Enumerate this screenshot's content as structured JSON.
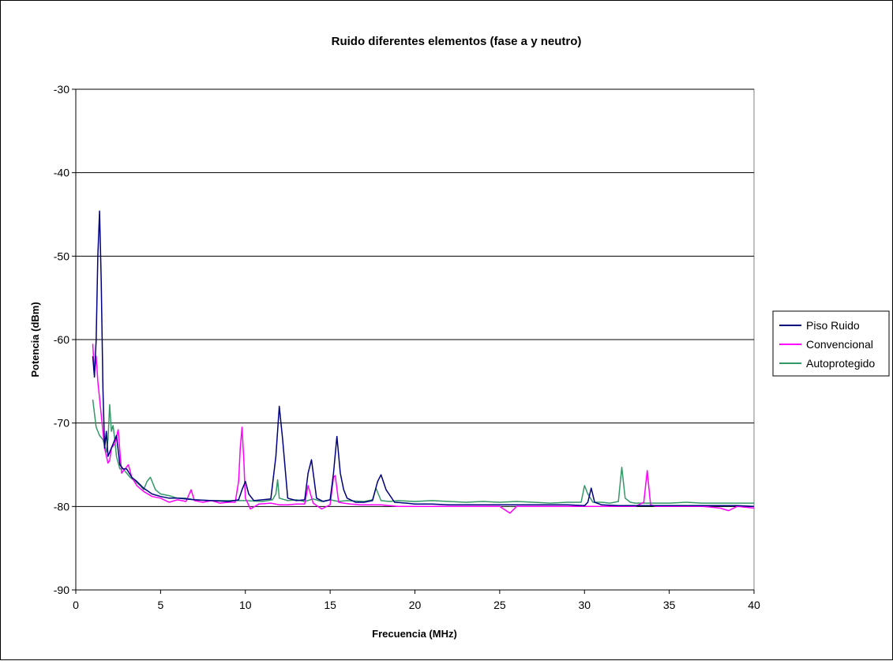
{
  "chart_data": {
    "type": "line",
    "title": "Ruido diferentes elementos (fase a y neutro)",
    "xlabel": "Frecuencia (MHz)",
    "ylabel": "Potencia (dBm)",
    "xlim": [
      0,
      40
    ],
    "ylim": [
      -90,
      -30
    ],
    "xticks": [
      0,
      5,
      10,
      15,
      20,
      25,
      30,
      35,
      40
    ],
    "yticks": [
      -30,
      -40,
      -50,
      -60,
      -70,
      -80,
      -90
    ],
    "xtick_labels": [
      "0",
      "5",
      "10",
      "15",
      "20",
      "25",
      "30",
      "35",
      "40"
    ],
    "ytick_labels": [
      "-30",
      "-40",
      "-50",
      "-60",
      "-70",
      "-80",
      "-90"
    ],
    "grid": "horizontal",
    "legend_position": "right",
    "colors": {
      "Piso Ruido": "#000080",
      "Convencional": "#ff00ff",
      "Autoprotegido": "#339966"
    },
    "series": [
      {
        "name": "Piso Ruido",
        "x": [
          1.0,
          1.1,
          1.2,
          1.3,
          1.4,
          1.5,
          1.6,
          1.7,
          1.8,
          1.9,
          2.0,
          2.2,
          2.4,
          2.6,
          2.8,
          3.0,
          3.3,
          3.6,
          4.0,
          4.5,
          5.0,
          5.5,
          6.0,
          7.0,
          8.0,
          9.0,
          9.6,
          9.8,
          10.0,
          10.2,
          10.5,
          11.0,
          11.5,
          11.8,
          12.0,
          12.2,
          12.5,
          13.0,
          13.5,
          13.7,
          13.9,
          14.2,
          14.6,
          15.0,
          15.2,
          15.4,
          15.6,
          15.8,
          16.0,
          16.5,
          17.0,
          17.5,
          17.8,
          18.0,
          18.3,
          18.8,
          19.5,
          20.0,
          21.0,
          22.0,
          23.0,
          24.0,
          25.0,
          26.0,
          27.0,
          28.0,
          29.0,
          30.0,
          30.2,
          30.4,
          30.6,
          31.0,
          32.0,
          33.0,
          34.0,
          35.0,
          36.0,
          37.0,
          38.0,
          39.0,
          40.0
        ],
        "values": [
          -62,
          -64.5,
          -60,
          -50,
          -44.6,
          -53,
          -66,
          -73,
          -71,
          -74,
          -73.5,
          -72.5,
          -71.5,
          -75,
          -75.5,
          -75.5,
          -76.5,
          -77,
          -77.8,
          -78.5,
          -78.8,
          -79,
          -79,
          -79.2,
          -79.3,
          -79.4,
          -79.2,
          -78,
          -77,
          -78.5,
          -79.3,
          -79.2,
          -79.1,
          -74,
          -68,
          -72,
          -79,
          -79.3,
          -79.2,
          -76,
          -74.4,
          -79,
          -79.4,
          -79.2,
          -76,
          -71.6,
          -76,
          -78,
          -79,
          -79.5,
          -79.5,
          -79.3,
          -77,
          -76.2,
          -78,
          -79.5,
          -79.6,
          -79.7,
          -79.7,
          -79.8,
          -79.8,
          -79.8,
          -79.8,
          -79.8,
          -79.8,
          -79.8,
          -79.8,
          -79.9,
          -79.5,
          -77.8,
          -79.5,
          -79.8,
          -79.9,
          -79.9,
          -79.9,
          -79.9,
          -79.9,
          -79.9,
          -79.9,
          -79.9,
          -80
        ]
      },
      {
        "name": "Convencional",
        "x": [
          1.0,
          1.1,
          1.2,
          1.3,
          1.5,
          1.7,
          1.9,
          2.0,
          2.1,
          2.3,
          2.5,
          2.7,
          2.9,
          3.1,
          3.3,
          3.6,
          4.0,
          4.5,
          5.0,
          5.5,
          6.0,
          6.5,
          6.8,
          7.0,
          7.5,
          8.0,
          8.5,
          9.0,
          9.4,
          9.6,
          9.7,
          9.8,
          9.9,
          10.0,
          10.3,
          10.8,
          11.5,
          12.0,
          12.5,
          13.0,
          13.5,
          13.7,
          14.0,
          14.5,
          15.0,
          15.2,
          15.3,
          15.5,
          15.8,
          16.2,
          16.8,
          17.5,
          18.0,
          18.5,
          19.0,
          20.0,
          21.0,
          22.0,
          23.0,
          24.0,
          25.0,
          25.6,
          26.0,
          27.0,
          28.0,
          29.0,
          30.0,
          31.0,
          32.0,
          33.0,
          33.5,
          33.7,
          33.9,
          34.2,
          35.0,
          36.0,
          37.0,
          38.0,
          38.5,
          39.0,
          40.0
        ],
        "values": [
          -60.5,
          -64,
          -62,
          -65,
          -69,
          -73,
          -74.8,
          -74.5,
          -73,
          -72.5,
          -70.8,
          -76,
          -75.5,
          -75,
          -76.5,
          -77.5,
          -78.2,
          -78.8,
          -79,
          -79.5,
          -79.2,
          -79.4,
          -78,
          -79.3,
          -79.5,
          -79.3,
          -79.6,
          -79.5,
          -79.5,
          -77,
          -73,
          -70.5,
          -74,
          -79,
          -80.3,
          -79.7,
          -79.6,
          -79.8,
          -79.8,
          -79.7,
          -79.7,
          -77.5,
          -79.6,
          -80.3,
          -79.8,
          -76.5,
          -76.3,
          -79.5,
          -79.6,
          -79.7,
          -79.8,
          -79.8,
          -79.8,
          -79.9,
          -80,
          -80,
          -80,
          -80,
          -80,
          -80,
          -80,
          -80.8,
          -80,
          -80,
          -80,
          -80,
          -80,
          -80,
          -80,
          -80,
          -79.5,
          -75.7,
          -79.8,
          -80,
          -80,
          -80,
          -80,
          -80.2,
          -80.5,
          -80,
          -80.2
        ]
      },
      {
        "name": "Autoprotegido",
        "x": [
          1.0,
          1.2,
          1.4,
          1.6,
          1.8,
          1.9,
          2.0,
          2.1,
          2.2,
          2.3,
          2.4,
          2.6,
          2.8,
          3.0,
          3.2,
          3.5,
          3.8,
          4.0,
          4.2,
          4.4,
          4.7,
          5.0,
          5.5,
          6.0,
          6.5,
          7.0,
          8.0,
          9.0,
          10.0,
          11.0,
          11.6,
          11.8,
          11.9,
          12.0,
          12.5,
          13.0,
          13.5,
          14.0,
          14.5,
          15.0,
          15.5,
          16.0,
          17.0,
          17.5,
          17.7,
          18.0,
          18.5,
          19.0,
          20.0,
          21.0,
          22.0,
          23.0,
          24.0,
          25.0,
          26.0,
          27.0,
          28.0,
          29.0,
          29.8,
          30.0,
          30.2,
          30.5,
          31.0,
          31.5,
          32.0,
          32.2,
          32.4,
          32.7,
          33.0,
          34.0,
          35.0,
          36.0,
          37.0,
          38.0,
          39.0,
          40.0
        ],
        "values": [
          -67.2,
          -70.5,
          -71.5,
          -72,
          -73.5,
          -72,
          -67.8,
          -71,
          -70.3,
          -72,
          -74,
          -75.5,
          -75.5,
          -76,
          -76.5,
          -77,
          -77.5,
          -78,
          -77,
          -76.5,
          -78,
          -78.5,
          -78.7,
          -79,
          -79,
          -79.2,
          -79.3,
          -79.3,
          -79.3,
          -79.4,
          -79.2,
          -78.5,
          -76.8,
          -79,
          -79.3,
          -79.2,
          -79.4,
          -79.1,
          -79.4,
          -79.2,
          -79.4,
          -79.3,
          -79.4,
          -79.2,
          -77.8,
          -79.3,
          -79.4,
          -79.3,
          -79.4,
          -79.3,
          -79.4,
          -79.5,
          -79.4,
          -79.5,
          -79.4,
          -79.5,
          -79.6,
          -79.5,
          -79.5,
          -77.5,
          -78.5,
          -79.5,
          -79.5,
          -79.6,
          -79.4,
          -75.3,
          -79,
          -79.5,
          -79.6,
          -79.6,
          -79.6,
          -79.5,
          -79.6,
          -79.6,
          -79.6,
          -79.6
        ]
      }
    ]
  }
}
